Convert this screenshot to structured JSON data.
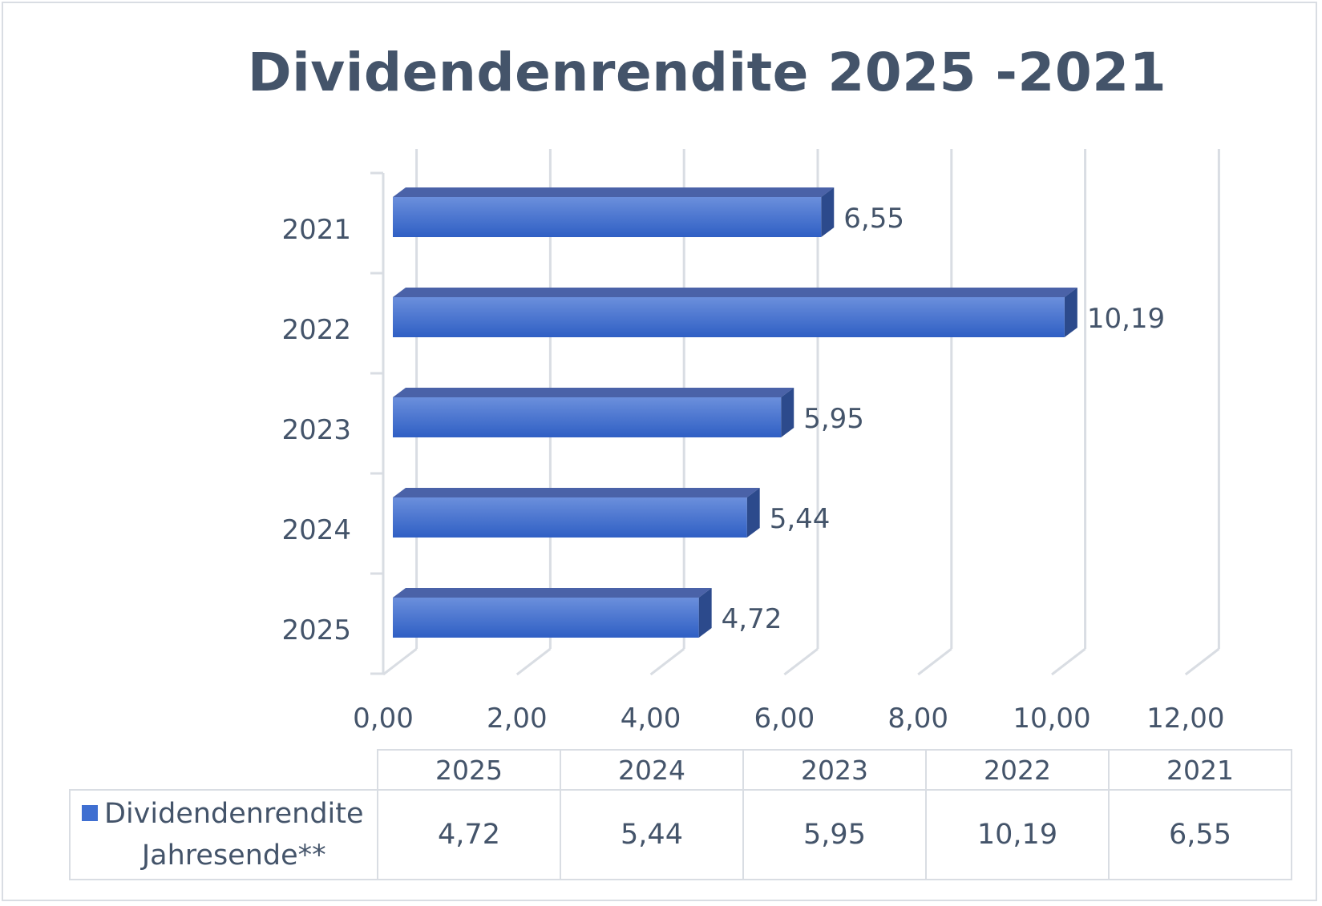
{
  "chart_data": {
    "type": "bar",
    "orientation": "horizontal",
    "title": "Dividendenrendite 2025 -2021",
    "categories": [
      "2021",
      "2022",
      "2023",
      "2024",
      "2025"
    ],
    "series": [
      {
        "name": "Dividendenrendite Jahresende**",
        "values": [
          6.55,
          10.19,
          5.95,
          5.44,
          4.72
        ]
      }
    ],
    "value_labels": [
      "6,55",
      "10,19",
      "5,95",
      "5,44",
      "4,72"
    ],
    "x_ticks": [
      "0,00",
      "2,00",
      "4,00",
      "6,00",
      "8,00",
      "10,00",
      "12,00"
    ],
    "xlim": [
      0,
      12
    ],
    "grid": true,
    "data_table": {
      "headers": [
        "2025",
        "2024",
        "2023",
        "2022",
        "2021"
      ],
      "series_label_line1": "Dividendenrendite",
      "series_label_line2": "Jahresende**",
      "values": [
        "4,72",
        "5,44",
        "5,95",
        "10,19",
        "6,55"
      ]
    },
    "colors": {
      "bar": "#3f6fd1",
      "bar_top": "#4a62a8",
      "bar_side": "#2c4a8c",
      "text": "#44546a",
      "grid": "#d9dde3"
    }
  }
}
